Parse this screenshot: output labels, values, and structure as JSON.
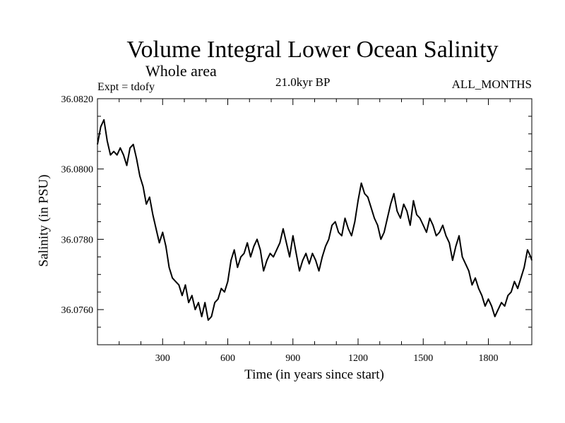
{
  "chart_data": {
    "type": "line",
    "title": "Volume Integral Lower Ocean Salinity",
    "subtitle": "Whole area",
    "annotations": {
      "expt": "Expt = tdofy",
      "period": "21.0kyr BP",
      "months": "ALL_MONTHS"
    },
    "xlabel": "Time (in years since start)",
    "ylabel": "Salinity (in PSU)",
    "xlim": [
      0,
      2000
    ],
    "ylim": [
      36.075,
      36.082
    ],
    "xticks": [
      300,
      600,
      900,
      1200,
      1500,
      1800
    ],
    "xtick_labels": [
      "300",
      "600",
      "900",
      "1200",
      "1500",
      "1800"
    ],
    "yticks": [
      36.076,
      36.078,
      36.08,
      36.082
    ],
    "ytick_labels": [
      "36.0760",
      "36.0780",
      "36.0800",
      "36.0820"
    ],
    "grid": false,
    "series": [
      {
        "color": "#000000",
        "x": [
          0,
          15,
          30,
          45,
          60,
          75,
          90,
          105,
          120,
          135,
          150,
          165,
          180,
          195,
          210,
          225,
          240,
          255,
          270,
          285,
          300,
          315,
          330,
          345,
          360,
          375,
          390,
          405,
          420,
          435,
          450,
          465,
          480,
          495,
          510,
          525,
          540,
          555,
          570,
          585,
          600,
          615,
          630,
          645,
          660,
          675,
          690,
          705,
          720,
          735,
          750,
          765,
          780,
          795,
          810,
          825,
          840,
          855,
          870,
          885,
          900,
          915,
          930,
          945,
          960,
          975,
          990,
          1005,
          1020,
          1035,
          1050,
          1065,
          1080,
          1095,
          1110,
          1125,
          1140,
          1155,
          1170,
          1185,
          1200,
          1215,
          1230,
          1245,
          1260,
          1275,
          1290,
          1305,
          1320,
          1335,
          1350,
          1365,
          1380,
          1395,
          1410,
          1425,
          1440,
          1455,
          1470,
          1485,
          1500,
          1515,
          1530,
          1545,
          1560,
          1575,
          1590,
          1605,
          1620,
          1635,
          1650,
          1665,
          1680,
          1695,
          1710,
          1725,
          1740,
          1755,
          1770,
          1785,
          1800,
          1815,
          1830,
          1845,
          1860,
          1875,
          1890,
          1905,
          1920,
          1935,
          1950,
          1965,
          1980,
          1995,
          2000
        ],
        "y": [
          36.0807,
          36.0812,
          36.0814,
          36.0808,
          36.0804,
          36.0805,
          36.0804,
          36.0806,
          36.0804,
          36.0801,
          36.0806,
          36.0807,
          36.0803,
          36.0798,
          36.0795,
          36.079,
          36.0792,
          36.0787,
          36.0783,
          36.0779,
          36.0782,
          36.0778,
          36.0772,
          36.0769,
          36.0768,
          36.0767,
          36.0764,
          36.0767,
          36.0762,
          36.0764,
          36.076,
          36.0762,
          36.0758,
          36.0762,
          36.0757,
          36.0758,
          36.0762,
          36.0763,
          36.0766,
          36.0765,
          36.0768,
          36.0774,
          36.0777,
          36.0772,
          36.0775,
          36.0776,
          36.0779,
          36.0775,
          36.0778,
          36.078,
          36.0777,
          36.0771,
          36.0774,
          36.0776,
          36.0775,
          36.0777,
          36.0779,
          36.0783,
          36.0779,
          36.0775,
          36.0781,
          36.0776,
          36.0771,
          36.0774,
          36.0776,
          36.0773,
          36.0776,
          36.0774,
          36.0771,
          36.0775,
          36.0778,
          36.078,
          36.0784,
          36.0785,
          36.0782,
          36.0781,
          36.0786,
          36.0783,
          36.0781,
          36.0785,
          36.0791,
          36.0796,
          36.0793,
          36.0792,
          36.0789,
          36.0786,
          36.0784,
          36.078,
          36.0782,
          36.0786,
          36.079,
          36.0793,
          36.0788,
          36.0786,
          36.079,
          36.0788,
          36.0784,
          36.0791,
          36.0787,
          36.0786,
          36.0784,
          36.0782,
          36.0786,
          36.0784,
          36.0781,
          36.0782,
          36.0784,
          36.0781,
          36.0779,
          36.0774,
          36.0778,
          36.0781,
          36.0775,
          36.0773,
          36.0771,
          36.0767,
          36.0769,
          36.0766,
          36.0764,
          36.0761,
          36.0763,
          36.0761,
          36.0758,
          36.076,
          36.0762,
          36.0761,
          36.0764,
          36.0765,
          36.0768,
          36.0766,
          36.0769,
          36.0772,
          36.0777,
          36.0775,
          36.0774
        ]
      }
    ]
  }
}
